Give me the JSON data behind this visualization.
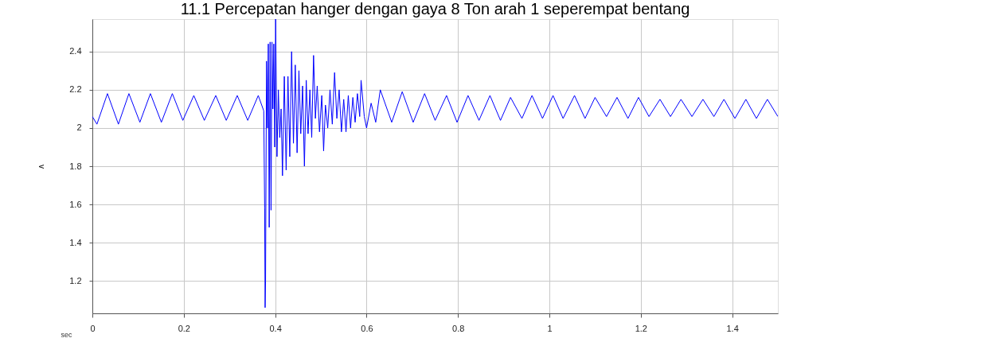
{
  "chart_data": {
    "type": "line",
    "title": "11.1 Percepatan hanger dengan gaya 8 Ton arah 1 seperempat bentang",
    "xlabel": "sec",
    "ylabel": "v",
    "xlim": [
      0,
      1.5
    ],
    "ylim": [
      1.03,
      2.57
    ],
    "xticks": [
      0,
      0.2,
      0.4,
      0.6,
      0.8,
      1,
      1.2,
      1.4
    ],
    "yticks": [
      1.2,
      1.4,
      1.6,
      1.8,
      2,
      2.2,
      2.4
    ],
    "grid": true,
    "marker": "none",
    "line_style": "solid",
    "series": [
      {
        "color": "#0000ff",
        "x": [
          0,
          0.01,
          0.033,
          0.057,
          0.08,
          0.104,
          0.127,
          0.151,
          0.175,
          0.198,
          0.222,
          0.245,
          0.27,
          0.293,
          0.317,
          0.34,
          0.363,
          0.375,
          0.377,
          0.378,
          0.379,
          0.381,
          0.383,
          0.385,
          0.387,
          0.389,
          0.391,
          0.393,
          0.395,
          0.397,
          0.399,
          0.401,
          0.404,
          0.407,
          0.41,
          0.413,
          0.416,
          0.42,
          0.424,
          0.428,
          0.432,
          0.436,
          0.44,
          0.444,
          0.448,
          0.452,
          0.456,
          0.46,
          0.464,
          0.468,
          0.472,
          0.476,
          0.48,
          0.484,
          0.488,
          0.492,
          0.497,
          0.502,
          0.506,
          0.51,
          0.515,
          0.52,
          0.525,
          0.53,
          0.535,
          0.54,
          0.545,
          0.55,
          0.555,
          0.56,
          0.565,
          0.57,
          0.575,
          0.58,
          0.585,
          0.588,
          0.595,
          0.6,
          0.61,
          0.62,
          0.63,
          0.655,
          0.678,
          0.702,
          0.727,
          0.75,
          0.775,
          0.798,
          0.822,
          0.846,
          0.87,
          0.893,
          0.915,
          0.94,
          0.962,
          0.985,
          1.008,
          1.03,
          1.055,
          1.078,
          1.1,
          1.125,
          1.148,
          1.172,
          1.195,
          1.218,
          1.242,
          1.265,
          1.288,
          1.312,
          1.336,
          1.36,
          1.382,
          1.406,
          1.43,
          1.453,
          1.477,
          1.5
        ],
        "values": [
          2.06,
          2.02,
          2.18,
          2.02,
          2.18,
          2.03,
          2.18,
          2.03,
          2.18,
          2.04,
          2.17,
          2.04,
          2.17,
          2.04,
          2.17,
          2.04,
          2.17,
          2.09,
          1.58,
          1.06,
          1.2,
          2.35,
          2.0,
          2.44,
          1.48,
          2.45,
          1.57,
          2.45,
          2.1,
          2.44,
          1.9,
          2.57,
          1.85,
          2.2,
          1.95,
          2.1,
          1.75,
          2.27,
          1.78,
          2.27,
          1.85,
          2.4,
          1.92,
          2.33,
          1.87,
          2.3,
          1.97,
          2.22,
          1.8,
          2.25,
          1.97,
          2.2,
          1.95,
          2.38,
          2.05,
          2.22,
          1.98,
          2.17,
          1.88,
          2.12,
          2.0,
          2.2,
          2.02,
          2.29,
          2.05,
          2.2,
          1.98,
          2.15,
          1.98,
          2.17,
          2.0,
          2.16,
          2.03,
          2.18,
          2.06,
          2.25,
          2.06,
          2.0,
          2.13,
          2.03,
          2.2,
          2.03,
          2.19,
          2.03,
          2.18,
          2.04,
          2.17,
          2.03,
          2.17,
          2.04,
          2.17,
          2.04,
          2.16,
          2.05,
          2.17,
          2.05,
          2.17,
          2.05,
          2.17,
          2.05,
          2.16,
          2.06,
          2.16,
          2.05,
          2.16,
          2.06,
          2.15,
          2.06,
          2.15,
          2.06,
          2.15,
          2.06,
          2.15,
          2.05,
          2.15,
          2.05,
          2.15,
          2.06
        ]
      }
    ]
  }
}
